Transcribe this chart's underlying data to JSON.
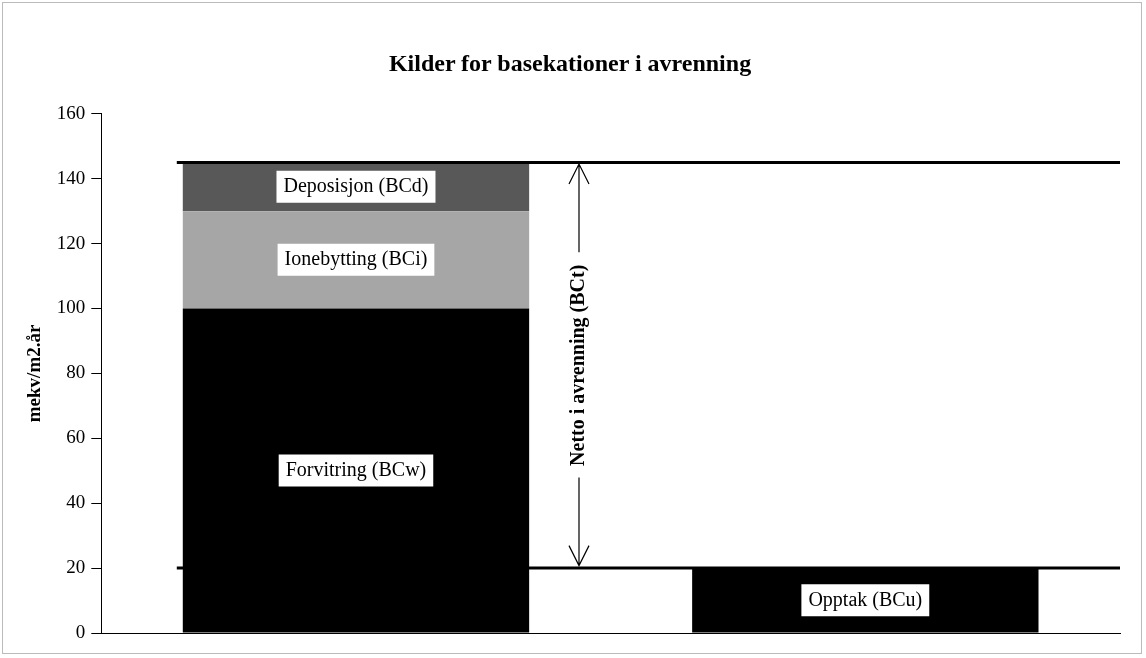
{
  "chart_data": {
    "type": "bar",
    "title": "Kilder for basekationer i avrenning",
    "ylabel": "mekv/m2.år",
    "categories": [
      null,
      null
    ],
    "stacked": true,
    "series": [
      {
        "name": "Forvitring (BCw)",
        "color": "#000000",
        "values": [
          100,
          null
        ]
      },
      {
        "name": "Ionebytting (BCi)",
        "color": "#a6a6a6",
        "values": [
          30,
          null
        ]
      },
      {
        "name": "Deposisjon (BCd)",
        "color": "#585858",
        "values": [
          15,
          null
        ]
      },
      {
        "name": "Opptak (BCu)",
        "color": "#000000",
        "values": [
          null,
          20
        ]
      }
    ],
    "ylim": [
      0,
      160
    ],
    "yticks": [
      0,
      20,
      40,
      60,
      80,
      100,
      120,
      140,
      160
    ],
    "ref_lines": [
      {
        "axis": "y",
        "value": 145,
        "color": "#000000"
      },
      {
        "axis": "y",
        "value": 20,
        "color": "#000000"
      }
    ],
    "annotations": [
      "Netto i avrenning (BCt)"
    ],
    "grid": false,
    "legend": false
  }
}
